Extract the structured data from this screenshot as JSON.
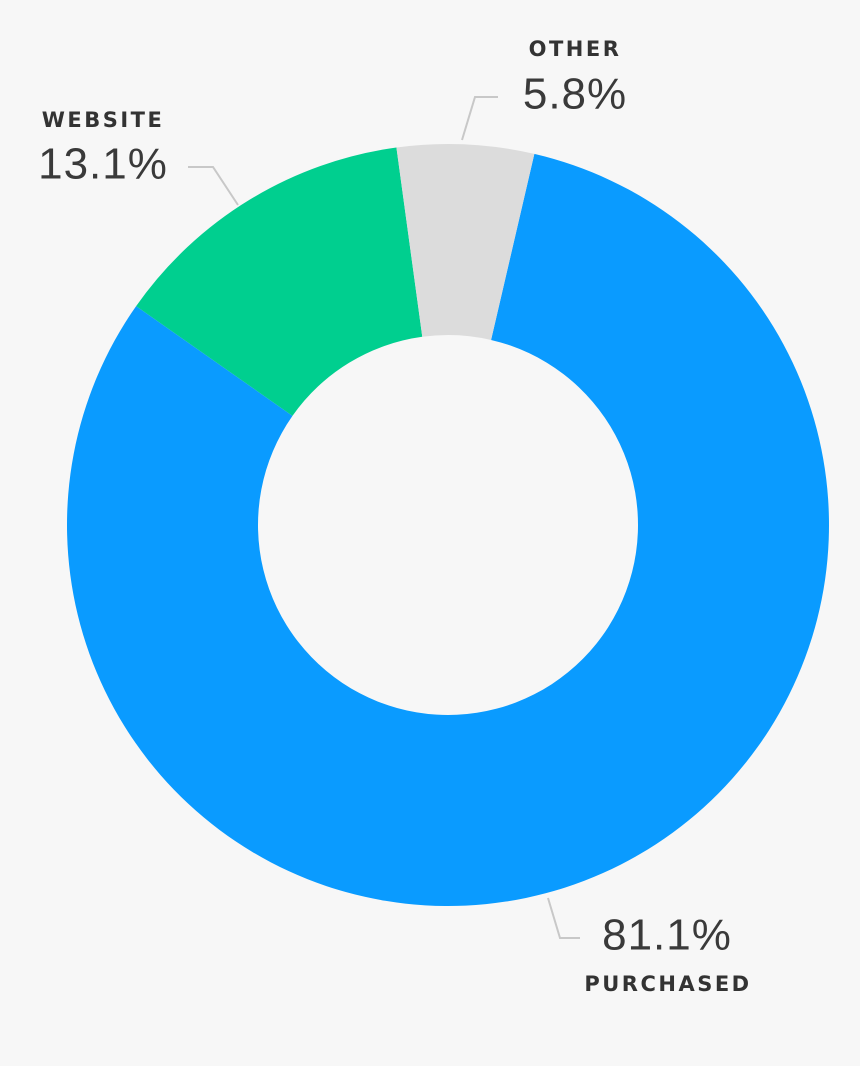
{
  "chart_data": {
    "type": "donut",
    "categories": [
      "PURCHASED",
      "WEBSITE",
      "OTHER"
    ],
    "values": [
      81.1,
      13.1,
      5.8
    ],
    "value_labels": [
      "81.1%",
      "13.1%",
      "5.8%"
    ],
    "colors": [
      "#0a9bff",
      "#00cf8f",
      "#dcdcdc"
    ]
  }
}
